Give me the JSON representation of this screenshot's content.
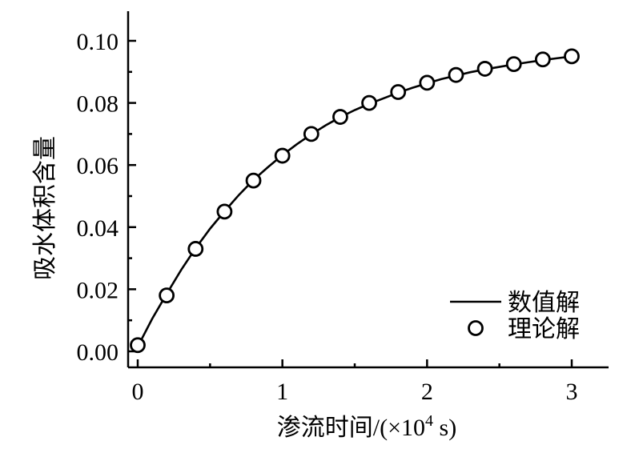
{
  "chart_data": {
    "type": "line",
    "title": "",
    "xlabel_parts": {
      "main": "渗流时间/(×10",
      "sup": "4",
      "tail": " s)"
    },
    "ylabel": "吸水体积含量",
    "xlim": [
      -0.05,
      3.25
    ],
    "ylim": [
      -0.005,
      0.11
    ],
    "x_ticks": [
      0,
      1,
      2,
      3
    ],
    "x_tick_labels": [
      "0",
      "1",
      "2",
      "3"
    ],
    "x_minor_ticks": [
      0.5,
      1.5,
      2.5
    ],
    "y_ticks": [
      0.0,
      0.02,
      0.04,
      0.06,
      0.08,
      0.1
    ],
    "y_tick_labels": [
      "0.00",
      "0.02",
      "0.04",
      "0.06",
      "0.08",
      "0.10"
    ],
    "y_minor_ticks": [
      0.01,
      0.03,
      0.05,
      0.07,
      0.09
    ],
    "legend_position": "bottom-right",
    "series": [
      {
        "name": "数值解",
        "style": "line",
        "x": [
          0.0,
          0.1,
          0.2,
          0.3,
          0.4,
          0.5,
          0.6,
          0.7,
          0.8,
          0.9,
          1.0,
          1.1,
          1.2,
          1.3,
          1.4,
          1.5,
          1.6,
          1.7,
          1.8,
          1.9,
          2.0,
          2.1,
          2.2,
          2.3,
          2.4,
          2.5,
          2.6,
          2.7,
          2.8,
          2.9,
          3.0
        ],
        "y": [
          0.0015,
          0.0105,
          0.0185,
          0.0262,
          0.0332,
          0.0395,
          0.0451,
          0.0504,
          0.0552,
          0.0593,
          0.0632,
          0.0667,
          0.0699,
          0.0728,
          0.0754,
          0.0777,
          0.0797,
          0.0815,
          0.0833,
          0.0849,
          0.0863,
          0.0877,
          0.0888,
          0.0899,
          0.0908,
          0.0916,
          0.0924,
          0.0931,
          0.0938,
          0.0944,
          0.095
        ]
      },
      {
        "name": "理论解",
        "style": "marker",
        "x": [
          0.0,
          0.2,
          0.4,
          0.6,
          0.8,
          1.0,
          1.2,
          1.4,
          1.6,
          1.8,
          2.0,
          2.2,
          2.4,
          2.6,
          2.8,
          3.0
        ],
        "y": [
          0.002,
          0.018,
          0.033,
          0.045,
          0.055,
          0.063,
          0.07,
          0.0755,
          0.08,
          0.0835,
          0.0865,
          0.089,
          0.091,
          0.0925,
          0.094,
          0.095
        ]
      }
    ]
  }
}
